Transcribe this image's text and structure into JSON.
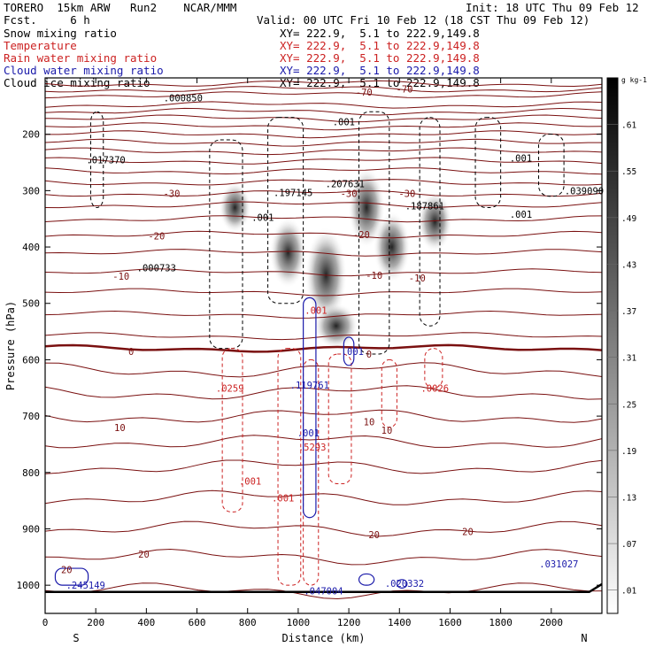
{
  "header": {
    "title": "TORERO  15km ARW   Run2    NCAR/MMM",
    "fcst": "Fcst.     6 h",
    "init": "Init: 18 UTC Thu 09 Feb 12",
    "valid": "Valid: 00 UTC Fri 10 Feb 12 (18 CST Thu 09 Feb 12)"
  },
  "legend": [
    {
      "label": "Snow mixing ratio",
      "xy": "",
      "color": "#000000"
    },
    {
      "label": "Temperature",
      "xy": "XY= 222.9,  5.1 to 222.9,149.8",
      "color": "#cc2222"
    },
    {
      "label": "Rain water mixing ratio",
      "xy": "XY= 222.9,  5.1 to 222.9,149.8",
      "color": "#cc2222"
    },
    {
      "label": "Cloud water mixing ratio",
      "xy": "XY= 222.9,  5.1 to 222.9,149.8",
      "color": "#1a1aaa"
    },
    {
      "label": "Cloud ice mixing ratio",
      "xy": "XY= 222.9,  5.1 to 222.9,149.8",
      "color": "#000000"
    }
  ],
  "first_xy": "XY= 222.9,  5.1 to 222.9,149.8",
  "chart_data": {
    "type": "cross-section",
    "xlabel": "Distance (km)",
    "ylabel": "Pressure (hPa)",
    "xlim": [
      0,
      2200
    ],
    "ylim": [
      1050,
      100
    ],
    "x_ticks": [
      0,
      200,
      400,
      600,
      800,
      1000,
      1200,
      1400,
      1600,
      1800,
      2000
    ],
    "y_ticks": [
      200,
      300,
      400,
      500,
      600,
      700,
      800,
      900,
      1000
    ],
    "left_end": "S",
    "right_end": "N",
    "colorbar": {
      "unit": "g kg-1",
      "ticks": [
        ".01",
        ".07",
        ".13",
        ".19",
        ".25",
        ".31",
        ".37",
        ".43",
        ".49",
        ".55",
        ".61"
      ]
    },
    "temperature_labels": [
      {
        "text": "-70",
        "x": 1260,
        "p": 125
      },
      {
        "text": "-70",
        "x": 1420,
        "p": 120
      },
      {
        "text": "-30",
        "x": 500,
        "p": 305
      },
      {
        "text": "-30",
        "x": 1200,
        "p": 305
      },
      {
        "text": "-30",
        "x": 1430,
        "p": 305
      },
      {
        "text": "-20",
        "x": 440,
        "p": 380
      },
      {
        "text": "-20",
        "x": 1250,
        "p": 378
      },
      {
        "text": "-10",
        "x": 300,
        "p": 452
      },
      {
        "text": "-10",
        "x": 1300,
        "p": 450
      },
      {
        "text": "-10",
        "x": 1470,
        "p": 455
      },
      {
        "text": "0",
        "x": 340,
        "p": 585
      },
      {
        "text": "0",
        "x": 1280,
        "p": 590
      },
      {
        "text": "10",
        "x": 295,
        "p": 720
      },
      {
        "text": "10",
        "x": 1280,
        "p": 710
      },
      {
        "text": "10",
        "x": 1350,
        "p": 725
      },
      {
        "text": "20",
        "x": 390,
        "p": 945
      },
      {
        "text": "20",
        "x": 1300,
        "p": 910
      },
      {
        "text": "20",
        "x": 1670,
        "p": 905
      },
      {
        "text": "20",
        "x": 85,
        "p": 972
      }
    ],
    "maxima": [
      {
        "text": ".000850",
        "x": 545,
        "p": 135,
        "color": "#000000"
      },
      {
        "text": ".017370",
        "x": 240,
        "p": 245,
        "color": "#000000"
      },
      {
        "text": ".197145",
        "x": 980,
        "p": 303,
        "color": "#000000"
      },
      {
        "text": ".207631",
        "x": 1185,
        "p": 288,
        "color": "#000000"
      },
      {
        "text": ".187861",
        "x": 1500,
        "p": 327,
        "color": "#000000"
      },
      {
        "text": ".039090",
        "x": 2130,
        "p": 300,
        "color": "#000000"
      },
      {
        "text": ".000733",
        "x": 440,
        "p": 437,
        "color": "#000000"
      },
      {
        "text": ".001",
        "x": 1180,
        "p": 178,
        "color": "#000000"
      },
      {
        "text": ".001",
        "x": 1880,
        "p": 242,
        "color": "#000000"
      },
      {
        "text": ".001",
        "x": 1880,
        "p": 342,
        "color": "#000000"
      },
      {
        "text": ".001",
        "x": 860,
        "p": 347,
        "color": "#000000"
      },
      {
        "text": ".0259",
        "x": 730,
        "p": 650,
        "color": "#cc2222"
      },
      {
        "text": ".0026",
        "x": 1540,
        "p": 650,
        "color": "#cc2222"
      },
      {
        "text": ".001",
        "x": 1070,
        "p": 512,
        "color": "#cc2222"
      },
      {
        "text": ".001",
        "x": 810,
        "p": 815,
        "color": "#cc2222"
      },
      {
        "text": ".001",
        "x": 940,
        "p": 845,
        "color": "#cc2222"
      },
      {
        "text": ".5293",
        "x": 1055,
        "p": 755,
        "color": "#cc2222"
      },
      {
        "text": ".119761",
        "x": 1045,
        "p": 645,
        "color": "#1a1aaa"
      },
      {
        "text": ".001",
        "x": 1040,
        "p": 730,
        "color": "#1a1aaa"
      },
      {
        "text": ".001",
        "x": 1215,
        "p": 585,
        "color": "#1a1aaa"
      },
      {
        "text": ".245149",
        "x": 160,
        "p": 1000,
        "color": "#1a1aaa"
      },
      {
        "text": ".047004",
        "x": 1100,
        "p": 1010,
        "color": "#1a1aaa"
      },
      {
        "text": ".020332",
        "x": 1420,
        "p": 997,
        "color": "#1a1aaa"
      },
      {
        "text": ".031027",
        "x": 2030,
        "p": 962,
        "color": "#1a1aaa"
      }
    ]
  }
}
